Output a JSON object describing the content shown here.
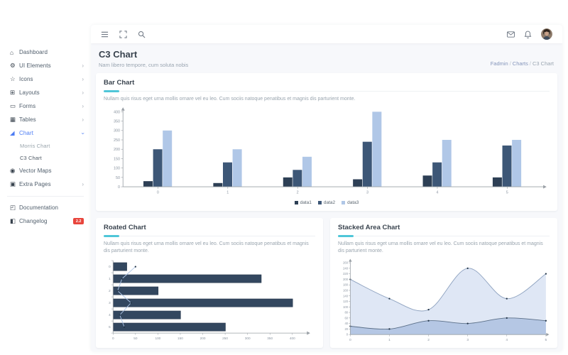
{
  "colors": {
    "accent": "#4fc6d8",
    "primary_blue": "#4c7cf3",
    "badge_red": "#e8453c",
    "axis": "#9aa0a6",
    "tick_label": "#8a94a0",
    "series1": "#2d3f55",
    "series2": "#3d5777",
    "series3": "#b0c7e7",
    "rotated_bar": "#33475f",
    "rotated_bar_stroke": "#26364a",
    "rotated_line": "#aec6e8",
    "area1_fill": "#b5c7e4",
    "area1_stroke": "#5c7089",
    "area2_fill": "#dfe7f5",
    "area2_stroke": "#8fa3c0",
    "point": "#223447"
  },
  "sidebar": {
    "items": [
      {
        "label": "Dashboard",
        "icon": "dashboard-icon",
        "glyph": "⌂"
      },
      {
        "label": "UI Elements",
        "icon": "ui-elements-icon",
        "glyph": "⚙",
        "chevron": "right"
      },
      {
        "label": "Icons",
        "icon": "icons-icon",
        "glyph": "☆",
        "chevron": "right"
      },
      {
        "label": "Layouts",
        "icon": "layouts-icon",
        "glyph": "⊞",
        "chevron": "right"
      },
      {
        "label": "Forms",
        "icon": "forms-icon",
        "glyph": "▭",
        "chevron": "right"
      },
      {
        "label": "Tables",
        "icon": "tables-icon",
        "glyph": "▦",
        "chevron": "right"
      },
      {
        "label": "Chart",
        "icon": "chart-icon",
        "glyph": "◢",
        "chevron": "down",
        "active": true
      },
      {
        "label": "Morris Chart",
        "sub": true
      },
      {
        "label": "C3 Chart",
        "sub": true,
        "sub_active": true
      },
      {
        "label": "Vector Maps",
        "icon": "vector-maps-icon",
        "glyph": "◉"
      },
      {
        "label": "Extra Pages",
        "icon": "extra-pages-icon",
        "glyph": "▣",
        "chevron": "right"
      }
    ],
    "footer_items": [
      {
        "label": "Documentation",
        "icon": "documentation-icon",
        "glyph": "◰"
      },
      {
        "label": "Changelog",
        "icon": "changelog-icon",
        "glyph": "◧",
        "badge": "2.2"
      }
    ]
  },
  "heading": {
    "title": "C3 Chart",
    "subtitle": "Nam libero tempore, cum soluta nobis"
  },
  "breadcrumb": {
    "items": [
      "Fadmin",
      "Charts",
      "C3 Chart"
    ],
    "separator": "/"
  },
  "cards": {
    "bar": {
      "title": "Bar Chart",
      "description": "Nullam quis risus eget urna mollis ornare vel eu leo. Cum sociis natoque penatibus et magnis dis parturient monte."
    },
    "rotated": {
      "title": "Roated Chart",
      "description": "Nullam quis risus eget urna mollis ornare vel eu leo. Cum sociis natoque penatibus et magnis dis parturient monte."
    },
    "stacked": {
      "title": "Stacked Area Chart",
      "description": "Nullam quis risus eget urna mollis ornare vel eu leo. Cum sociis natoque penatibus et magnis dis parturient monte."
    }
  },
  "chart_data": [
    {
      "type": "bar",
      "title": "Bar Chart",
      "x": [
        0,
        1,
        2,
        3,
        4,
        5
      ],
      "series": [
        {
          "name": "data1",
          "values": [
            30,
            20,
            50,
            40,
            60,
            50
          ]
        },
        {
          "name": "data2",
          "values": [
            200,
            130,
            90,
            240,
            130,
            220
          ]
        },
        {
          "name": "data3",
          "values": [
            300,
            200,
            160,
            400,
            250,
            250
          ]
        }
      ],
      "ylim": [
        0,
        400
      ],
      "ytick": 50,
      "grid": false,
      "legend_position": "bottom"
    },
    {
      "type": "bar-rotated",
      "title": "Roated Chart",
      "categories": [
        0,
        1,
        2,
        3,
        4,
        5
      ],
      "series": [
        {
          "name": "data1",
          "kind": "bar",
          "values": [
            30,
            330,
            100,
            400,
            150,
            250
          ]
        },
        {
          "name": "data2",
          "kind": "line",
          "values": [
            50,
            20,
            10,
            40,
            15,
            25
          ]
        }
      ],
      "xlim": [
        0,
        400
      ],
      "xtick": 50,
      "grid": false,
      "legend_position": "none"
    },
    {
      "type": "area",
      "title": "Stacked Area Chart",
      "x": [
        0,
        1,
        2,
        3,
        4,
        5
      ],
      "series": [
        {
          "name": "data1",
          "values": [
            30,
            20,
            50,
            40,
            60,
            50
          ]
        },
        {
          "name": "data2",
          "values": [
            200,
            130,
            90,
            240,
            130,
            220
          ]
        }
      ],
      "ylim": [
        0,
        260
      ],
      "ytick": 20,
      "grid": false,
      "legend_position": "none"
    }
  ]
}
